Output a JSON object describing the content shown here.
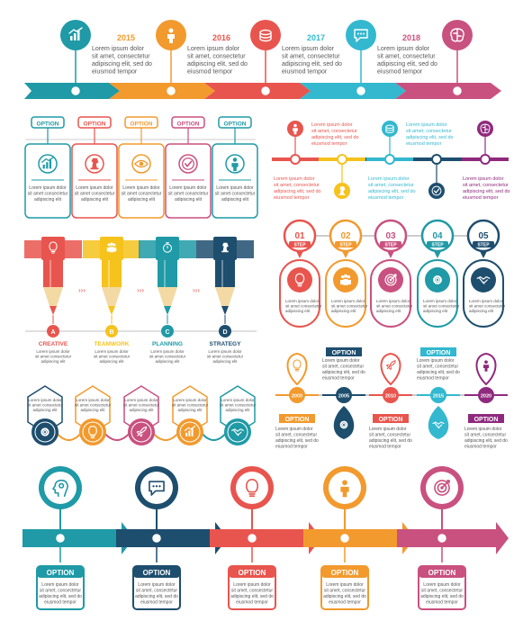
{
  "colors": {
    "teal": "#1f9aa6",
    "orange": "#f29a2e",
    "red": "#e8554e",
    "cyan": "#33b8cf",
    "pink": "#c9517f",
    "navy": "#1e4e6e",
    "purple": "#8e2a7d",
    "yellow": "#f6c21c",
    "green": "#79b84a",
    "gray": "#555555",
    "light_gray": "#cccccc"
  },
  "lorem_lines": [
    "Lorem ipsum dolor",
    "sit amet, consectetur",
    "adipiscing elit, sed do",
    "eiusmod tempor"
  ],
  "small_lines": [
    "Lorem ipsum dolor",
    "sit amet consectetur",
    "adipiscing elit"
  ],
  "option_label": "OPTION",
  "step_label": "STEP",
  "s1": {
    "years": [
      "2015",
      "2016",
      "2017",
      "2018"
    ],
    "icons": [
      "growth-chart-icon",
      "person-icon",
      "coins-icon",
      "chat-bubble-icon",
      "brain-icon"
    ]
  },
  "s2": {
    "icons": [
      "growth-chart-icon",
      "chess-knight-icon",
      "eye-icon",
      "checkmark-icon",
      "person-icon"
    ]
  },
  "s3": {
    "lorem_lines": [
      "Lorem ipsum dolor",
      "sit amet, consectetur",
      "adipiscing elit, sed do",
      "eiusmod tempor"
    ],
    "icons": [
      "person-icon",
      "chess-knight-icon",
      "coins-icon",
      "checkmark-icon",
      "brain-icon"
    ]
  },
  "s4": {
    "letters": [
      "A",
      "B",
      "C",
      "D"
    ],
    "labels": [
      "CREATIVE",
      "TEAMWORK",
      "PLANNING",
      "STRATEGY"
    ],
    "icons": [
      "lightbulb-icon",
      "people-icon",
      "stopwatch-icon",
      "chess-knight-icon"
    ]
  },
  "s5": {
    "steps": [
      "01",
      "02",
      "03",
      "04",
      "05"
    ],
    "icons": [
      "lightbulb-icon",
      "people-icon",
      "target-icon",
      "gear-icon",
      "handshake-icon"
    ]
  },
  "s6": {
    "icons": [
      "gear-icon",
      "lightbulb-icon",
      "rocket-icon",
      "growth-chart-icon",
      "handshake-icon"
    ]
  },
  "s7": {
    "years": [
      "2000",
      "2005",
      "2010",
      "2015",
      "2020"
    ],
    "icons": [
      "lightbulb-icon",
      "gear-icon",
      "rocket-icon",
      "handshake-icon",
      "person-icon"
    ]
  },
  "s8": {
    "icons": [
      "head-gear-icon",
      "chat-bubble-icon",
      "lightbulb-icon",
      "person-icon",
      "target-icon"
    ]
  }
}
